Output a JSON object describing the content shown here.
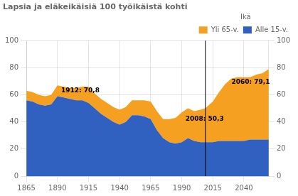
{
  "chart_data": {
    "type": "area",
    "title": "Lapsia ja eläkeikäisiä 100 työikäistä kohti",
    "x": [
      1865,
      1870,
      1875,
      1880,
      1885,
      1890,
      1895,
      1900,
      1905,
      1910,
      1915,
      1920,
      1925,
      1930,
      1935,
      1940,
      1945,
      1950,
      1955,
      1960,
      1965,
      1970,
      1975,
      1980,
      1985,
      1990,
      1995,
      2000,
      2005,
      2009,
      2010,
      2015,
      2020,
      2025,
      2030,
      2035,
      2040,
      2045,
      2050,
      2055,
      2060
    ],
    "series": [
      {
        "name": "Alle 15-v.",
        "color": "#3060C0",
        "values": [
          56,
          55,
          53,
          52,
          53,
          59,
          58,
          57,
          56,
          56,
          54,
          50,
          46,
          43,
          40,
          38,
          40,
          45,
          45,
          44,
          42,
          34,
          28,
          25,
          24,
          25,
          28,
          26,
          25,
          25,
          25,
          25,
          26,
          26,
          26,
          26,
          26,
          27,
          27,
          27,
          27
        ]
      },
      {
        "name": "Yli 65-v.",
        "color": "#F5A020",
        "values": [
          7,
          7,
          7,
          7,
          7,
          8,
          8,
          8,
          9,
          10,
          12,
          11,
          11,
          11,
          11,
          11,
          11,
          11,
          11,
          12,
          13,
          14,
          14,
          17,
          19,
          22,
          22,
          22,
          24,
          25,
          26,
          30,
          36,
          42,
          46,
          47,
          47,
          46,
          48,
          49,
          52
        ]
      }
    ],
    "stacked": true,
    "xlim": [
      1865,
      2060
    ],
    "xticks": [
      1865,
      1890,
      1915,
      1940,
      1965,
      1990,
      2015,
      2040
    ],
    "ylim": [
      0,
      100
    ],
    "yticks": [
      0,
      20,
      40,
      60,
      80,
      100
    ],
    "y2lim": [
      0,
      100
    ],
    "y2ticks": [
      0,
      20,
      40,
      60,
      80,
      100
    ],
    "grid": true,
    "legend": "top",
    "legend_title": "Ikä",
    "vlines": [
      2009
    ],
    "annotations": [
      {
        "text": "1912: 70,8",
        "x": 1893,
        "y": 62
      },
      {
        "text": "2008: 50,3",
        "x": 1993,
        "y": 41
      },
      {
        "text": "2060: 79,1",
        "x": 2030,
        "y": 68
      }
    ]
  }
}
